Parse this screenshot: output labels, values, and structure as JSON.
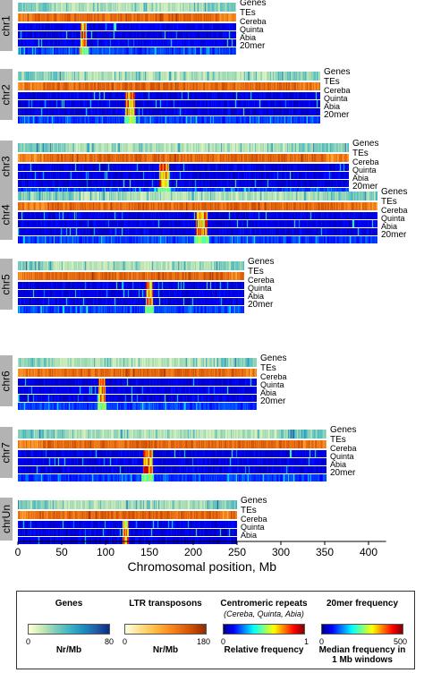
{
  "chart_data": {
    "type": "heatmap",
    "xlabel": "Chromosomal position, Mb",
    "xlim": [
      0,
      420
    ],
    "x_ticks": [
      "0",
      "50",
      "100",
      "150",
      "200",
      "250",
      "300",
      "350",
      "400"
    ],
    "tracks": [
      "Genes",
      "TEs",
      "Cereba",
      "Quinta",
      "Abia",
      "20mer"
    ],
    "chromosomes": [
      {
        "name": "chr1",
        "length_mb": 249,
        "tracks": [
          "Genes",
          "TEs",
          "Cereba",
          "Quinta",
          "Abia",
          "20mer"
        ]
      },
      {
        "name": "chr2",
        "length_mb": 345,
        "tracks": [
          "Genes",
          "TEs",
          "Cereba",
          "Quinta",
          "Abia",
          "20mer"
        ]
      },
      {
        "name": "chr3",
        "length_mb": 378,
        "tracks": [
          "Genes",
          "TEs",
          "Cereba",
          "Quinta",
          "Abia",
          "20mer"
        ]
      },
      {
        "name": "chr4",
        "length_mb": 410,
        "tracks": [
          "Genes",
          "TEs",
          "Cereba",
          "Quinta",
          "Abia",
          "20mer"
        ]
      },
      {
        "name": "chr5",
        "length_mb": 258,
        "tracks": [
          "Genes",
          "TEs",
          "Cereba",
          "Quinta",
          "Abia",
          "20mer"
        ]
      },
      {
        "name": "chr6",
        "length_mb": 272,
        "tracks": [
          "Genes",
          "TEs",
          "Cereba",
          "Quinta",
          "Abia",
          "20mer"
        ]
      },
      {
        "name": "chr7",
        "length_mb": 352,
        "tracks": [
          "Genes",
          "TEs",
          "Cereba",
          "Quinta",
          "Abia",
          "20mer"
        ]
      },
      {
        "name": "chrUn",
        "length_mb": 250,
        "tracks": [
          "Genes",
          "TEs",
          "Cereba",
          "Quinta",
          "Abia"
        ]
      }
    ],
    "legend": [
      {
        "title": "Genes",
        "subtitle": "",
        "min": "0",
        "max": "80",
        "unit": "Nr/Mb",
        "colormap": "YlGnBu",
        "colors": [
          "#ffffd9",
          "#c7e9b4",
          "#7fcdbb",
          "#41b6c4",
          "#1d91c0",
          "#225ea8",
          "#0c2c84"
        ]
      },
      {
        "title": "LTR transposons",
        "subtitle": "",
        "min": "0",
        "max": "180",
        "unit": "Nr/Mb",
        "colormap": "YlOrBr",
        "colors": [
          "#ffffe5",
          "#fee391",
          "#fec44f",
          "#fe9929",
          "#ec7014",
          "#cc4c02",
          "#8c2d04"
        ]
      },
      {
        "title": "Centromeric repeats",
        "subtitle": "(Cereba, Quinta, Abia)",
        "min": "0",
        "max": "1",
        "unit": "Relative frequency",
        "colormap": "jet",
        "colors": [
          "#00007f",
          "#0000ff",
          "#007fff",
          "#00ffff",
          "#7fff7f",
          "#ffff00",
          "#ff7f00",
          "#ff0000",
          "#7f0000"
        ]
      },
      {
        "title": "20mer frequency",
        "subtitle": "",
        "min": "0",
        "max": "500",
        "unit": "Median frequency in 1 Mb windows",
        "colormap": "jet",
        "colors": [
          "#00007f",
          "#0000ff",
          "#007fff",
          "#00ffff",
          "#7fff7f",
          "#ffff00",
          "#ff7f00",
          "#ff0000",
          "#7f0000"
        ]
      }
    ]
  }
}
